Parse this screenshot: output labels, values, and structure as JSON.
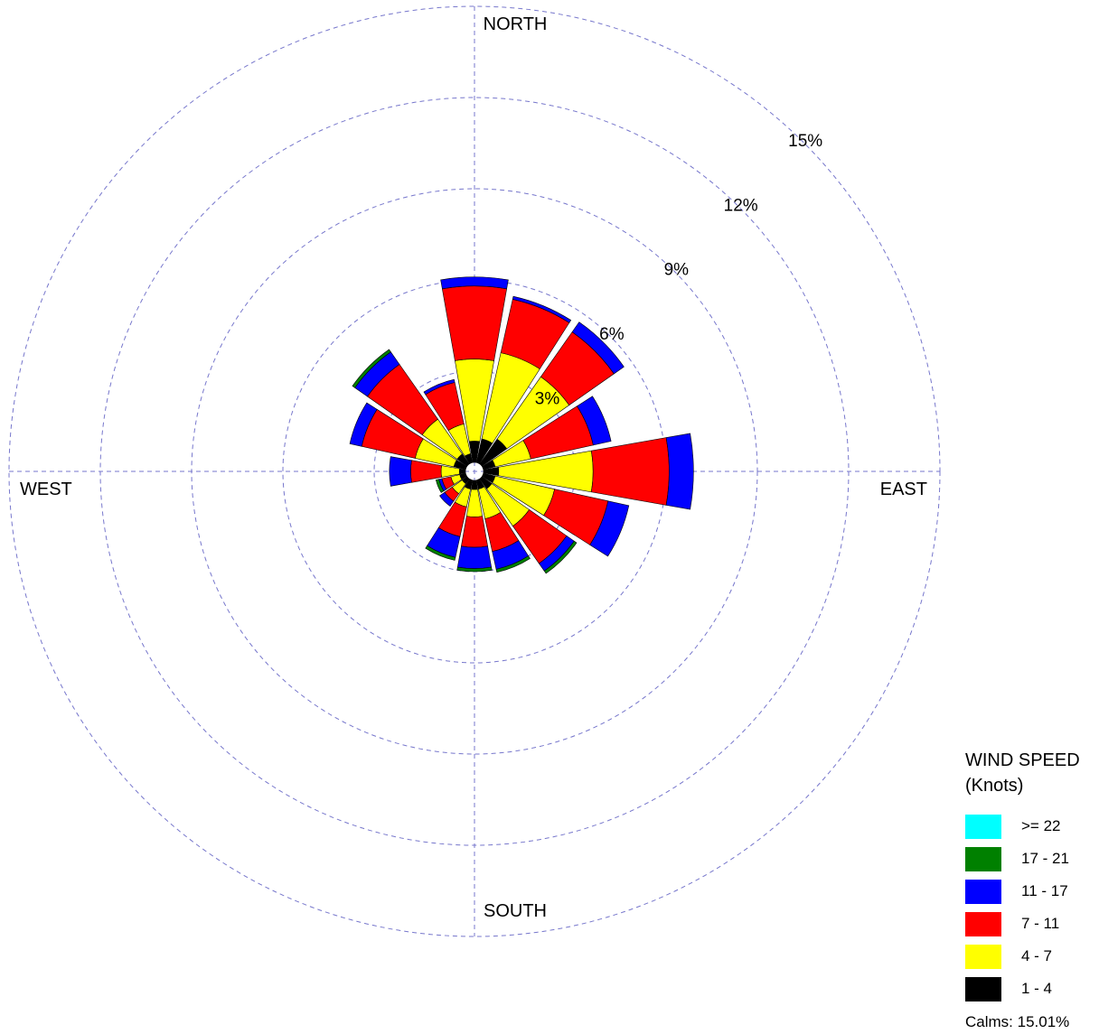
{
  "chart_data": {
    "type": "wind-rose",
    "cardinal_labels": {
      "north": "NORTH",
      "east": "EAST",
      "south": "SOUTH",
      "west": "WEST"
    },
    "rings": [
      {
        "value": 3,
        "label": "3%"
      },
      {
        "value": 6,
        "label": "6%"
      },
      {
        "value": 9,
        "label": "9%"
      },
      {
        "value": 12,
        "label": "12%"
      },
      {
        "value": 15,
        "label": "15%"
      }
    ],
    "rmax": 15,
    "grid": true,
    "legend": {
      "placement": "bottom-right",
      "title_line1": "WIND SPEED",
      "title_line2": "(Knots)",
      "calms": "Calms: 15.01%"
    },
    "speed_classes": [
      {
        "name": "1 - 4",
        "color": "#000000"
      },
      {
        "name": "4 - 7",
        "color": "#ffff00"
      },
      {
        "name": "7 - 11",
        "color": "#ff0000"
      },
      {
        "name": "11 - 17",
        "color": "#0000ff"
      },
      {
        "name": "17 - 21",
        "color": "#008000"
      },
      {
        "name": ">= 22",
        "color": "#00ffff"
      }
    ],
    "directions_deg": [
      0,
      22.5,
      45,
      67.5,
      90,
      112.5,
      135,
      157.5,
      180,
      202.5,
      225,
      247.5,
      270,
      292.5,
      315,
      337.5
    ],
    "values": [
      [
        0.7,
        2.7,
        2.4,
        0.3,
        0.0,
        0.0
      ],
      [
        0.8,
        2.9,
        1.8,
        0.1,
        0.0,
        0.0
      ],
      [
        1.0,
        2.5,
        1.8,
        0.4,
        0.0,
        0.0
      ],
      [
        0.4,
        1.2,
        2.1,
        0.6,
        0.0,
        0.0
      ],
      [
        0.5,
        3.1,
        2.5,
        0.8,
        0.0,
        0.0
      ],
      [
        0.4,
        2.0,
        1.8,
        0.7,
        0.0,
        0.0
      ],
      [
        0.4,
        1.5,
        1.5,
        0.3,
        0.1,
        0.0
      ],
      [
        0.3,
        1.0,
        1.1,
        0.6,
        0.1,
        0.0
      ],
      [
        0.3,
        0.9,
        1.0,
        0.7,
        0.1,
        0.0
      ],
      [
        0.3,
        0.6,
        1.0,
        0.7,
        0.1,
        0.0
      ],
      [
        0.2,
        0.4,
        0.3,
        0.2,
        0.0,
        0.0
      ],
      [
        0.2,
        0.3,
        0.3,
        0.1,
        0.1,
        0.0
      ],
      [
        0.2,
        0.6,
        1.0,
        0.7,
        0.0,
        0.0
      ],
      [
        0.4,
        1.3,
        1.8,
        0.4,
        0.0,
        0.0
      ],
      [
        0.4,
        1.4,
        2.2,
        0.5,
        0.1,
        0.0
      ],
      [
        0.3,
        1.0,
        1.4,
        0.1,
        0.0,
        0.0
      ]
    ]
  }
}
